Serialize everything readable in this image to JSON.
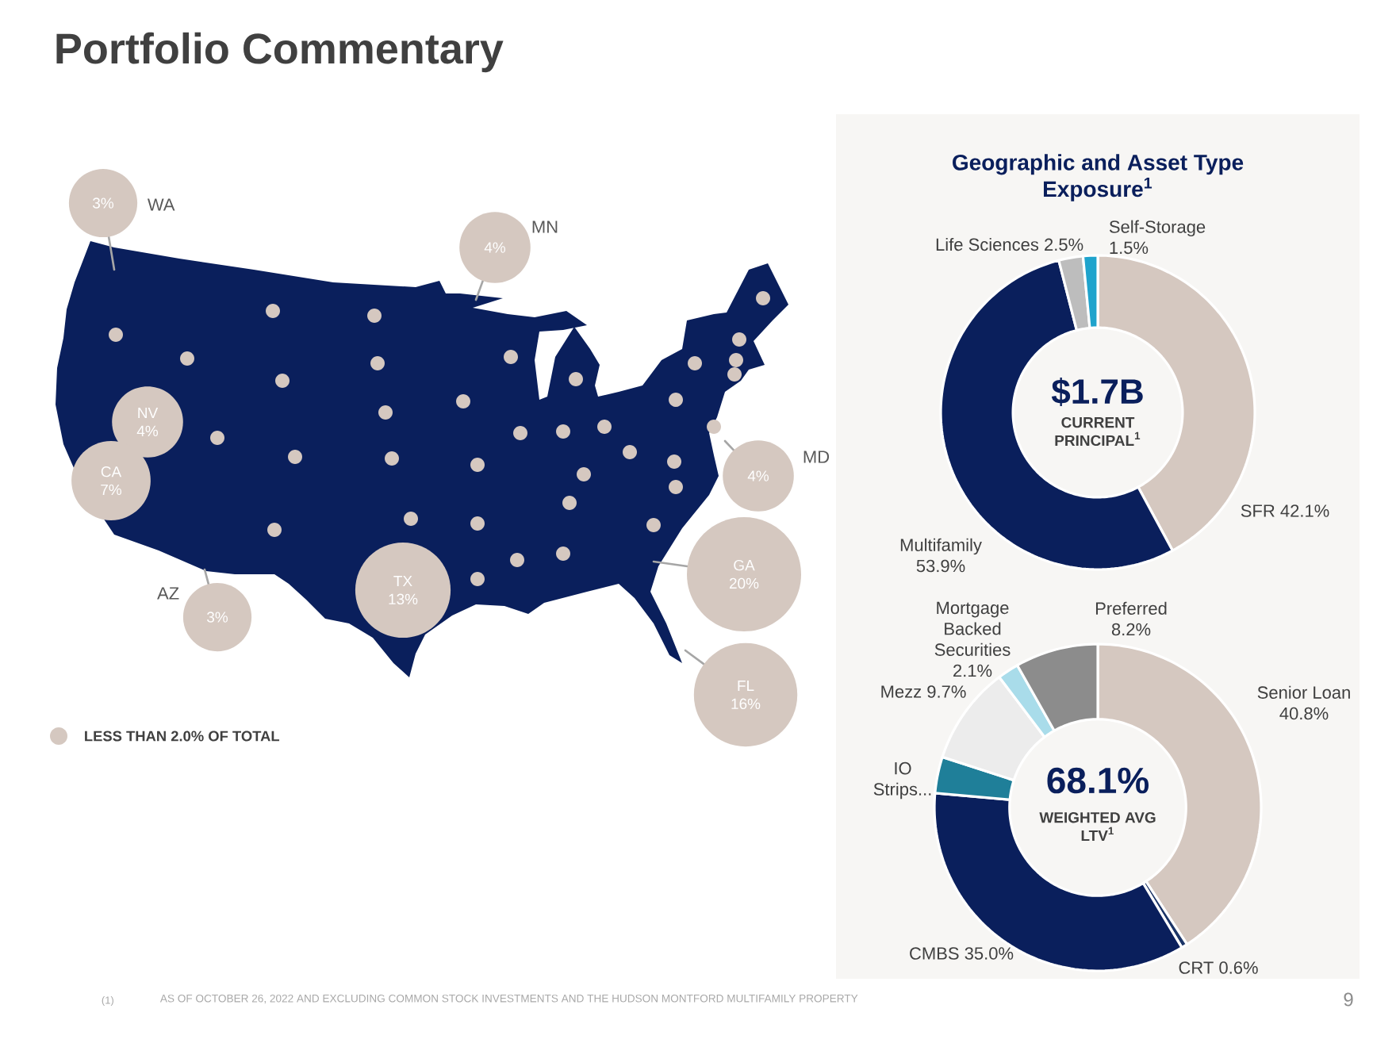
{
  "chart_data": [
    {
      "type": "other",
      "title": "Portfolio Commentary",
      "categories": [
        "WA",
        "MN",
        "NV",
        "CA",
        "AZ",
        "TX",
        "MD",
        "GA",
        "FL"
      ],
      "values": [
        3,
        4,
        4,
        7,
        3,
        13,
        4,
        20,
        16
      ],
      "value_labels": [
        "3%",
        "4%",
        "4%",
        "7%",
        "3%",
        "13%",
        "4%",
        "20%",
        "16%"
      ],
      "color": "#d5c8c0",
      "annotations": [
        "LESS THAN 2.0% OF TOTAL",
        "(1)",
        "AS OF OCTOBER 26, 2022 AND EXCLUDING COMMON STOCK INVESTMENTS AND THE HUDSON MONTFORD MULTIFAMILY PROPERTY"
      ]
    },
    {
      "type": "donut",
      "title": "Geographic and Asset Type Exposure$^{1}$",
      "categories": [
        "SFR",
        "Multifamily",
        "Life Sciences",
        "Self-Storage"
      ],
      "values": [
        42.1,
        53.9,
        2.5,
        1.5
      ],
      "value_labels": [
        "42.1%",
        "53.9%",
        "2.5%",
        "1.5%"
      ],
      "colors": [
        "#d5c8c0",
        "#0a1f5c",
        "#bdbdbd",
        "#1fa3cc"
      ],
      "annotations": [
        "$1.7B",
        "CURRENT PRINCIPAL$^{1}$"
      ]
    },
    {
      "type": "donut",
      "categories": [
        "Senior Loan",
        "CRT",
        "CMBS",
        "IO Strips...",
        "Mezz",
        "Mortgage Backed Securities",
        "Preferred"
      ],
      "values": [
        40.8,
        0.6,
        35.0,
        3.6,
        9.7,
        2.1,
        8.2
      ],
      "value_labels": [
        "40.8%",
        "0.6%",
        "35.0%",
        null,
        "9.7%",
        "2.1%",
        "8.2%"
      ],
      "colors": [
        "#d5c8c0",
        "#1c3567",
        "#0a1f5c",
        "#1f7f99",
        "#ececec",
        "#a9dcea",
        "#8c8c8c"
      ],
      "annotations": [
        "68.1%",
        "WEIGHTED AVG LTV$^{1}$",
        "9"
      ]
    }
  ]
}
